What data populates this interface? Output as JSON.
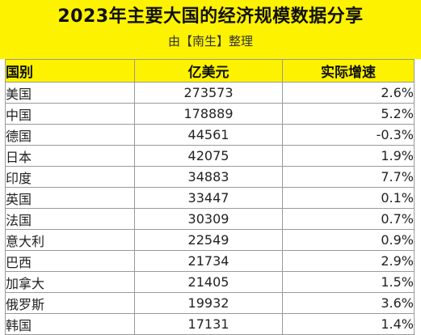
{
  "header": {
    "title": "2023年主要大国的经济规模数据分享",
    "subtitle": "由【南生】整理"
  },
  "table": {
    "columns": [
      "国别",
      "亿美元",
      "实际增速"
    ],
    "rows": [
      {
        "country": "美国",
        "value": "273573",
        "growth": "2.6%"
      },
      {
        "country": "中国",
        "value": "178889",
        "growth": "5.2%"
      },
      {
        "country": "德国",
        "value": "44561",
        "growth": "-0.3%"
      },
      {
        "country": "日本",
        "value": "42075",
        "growth": "1.9%"
      },
      {
        "country": "印度",
        "value": "34883",
        "growth": "7.7%"
      },
      {
        "country": "英国",
        "value": "33447",
        "growth": "0.1%"
      },
      {
        "country": "法国",
        "value": "30309",
        "growth": "0.7%"
      },
      {
        "country": "意大利",
        "value": "22549",
        "growth": "0.9%"
      },
      {
        "country": "巴西",
        "value": "21734",
        "growth": "2.9%"
      },
      {
        "country": "加拿大",
        "value": "21405",
        "growth": "1.5%"
      },
      {
        "country": "俄罗斯",
        "value": "19932",
        "growth": "3.6%"
      },
      {
        "country": "韩国",
        "value": "17131",
        "growth": "1.4%"
      }
    ]
  },
  "colors": {
    "banner_background": "#fdf200",
    "grid_line": "#9a9a9a",
    "text": "#111111"
  }
}
